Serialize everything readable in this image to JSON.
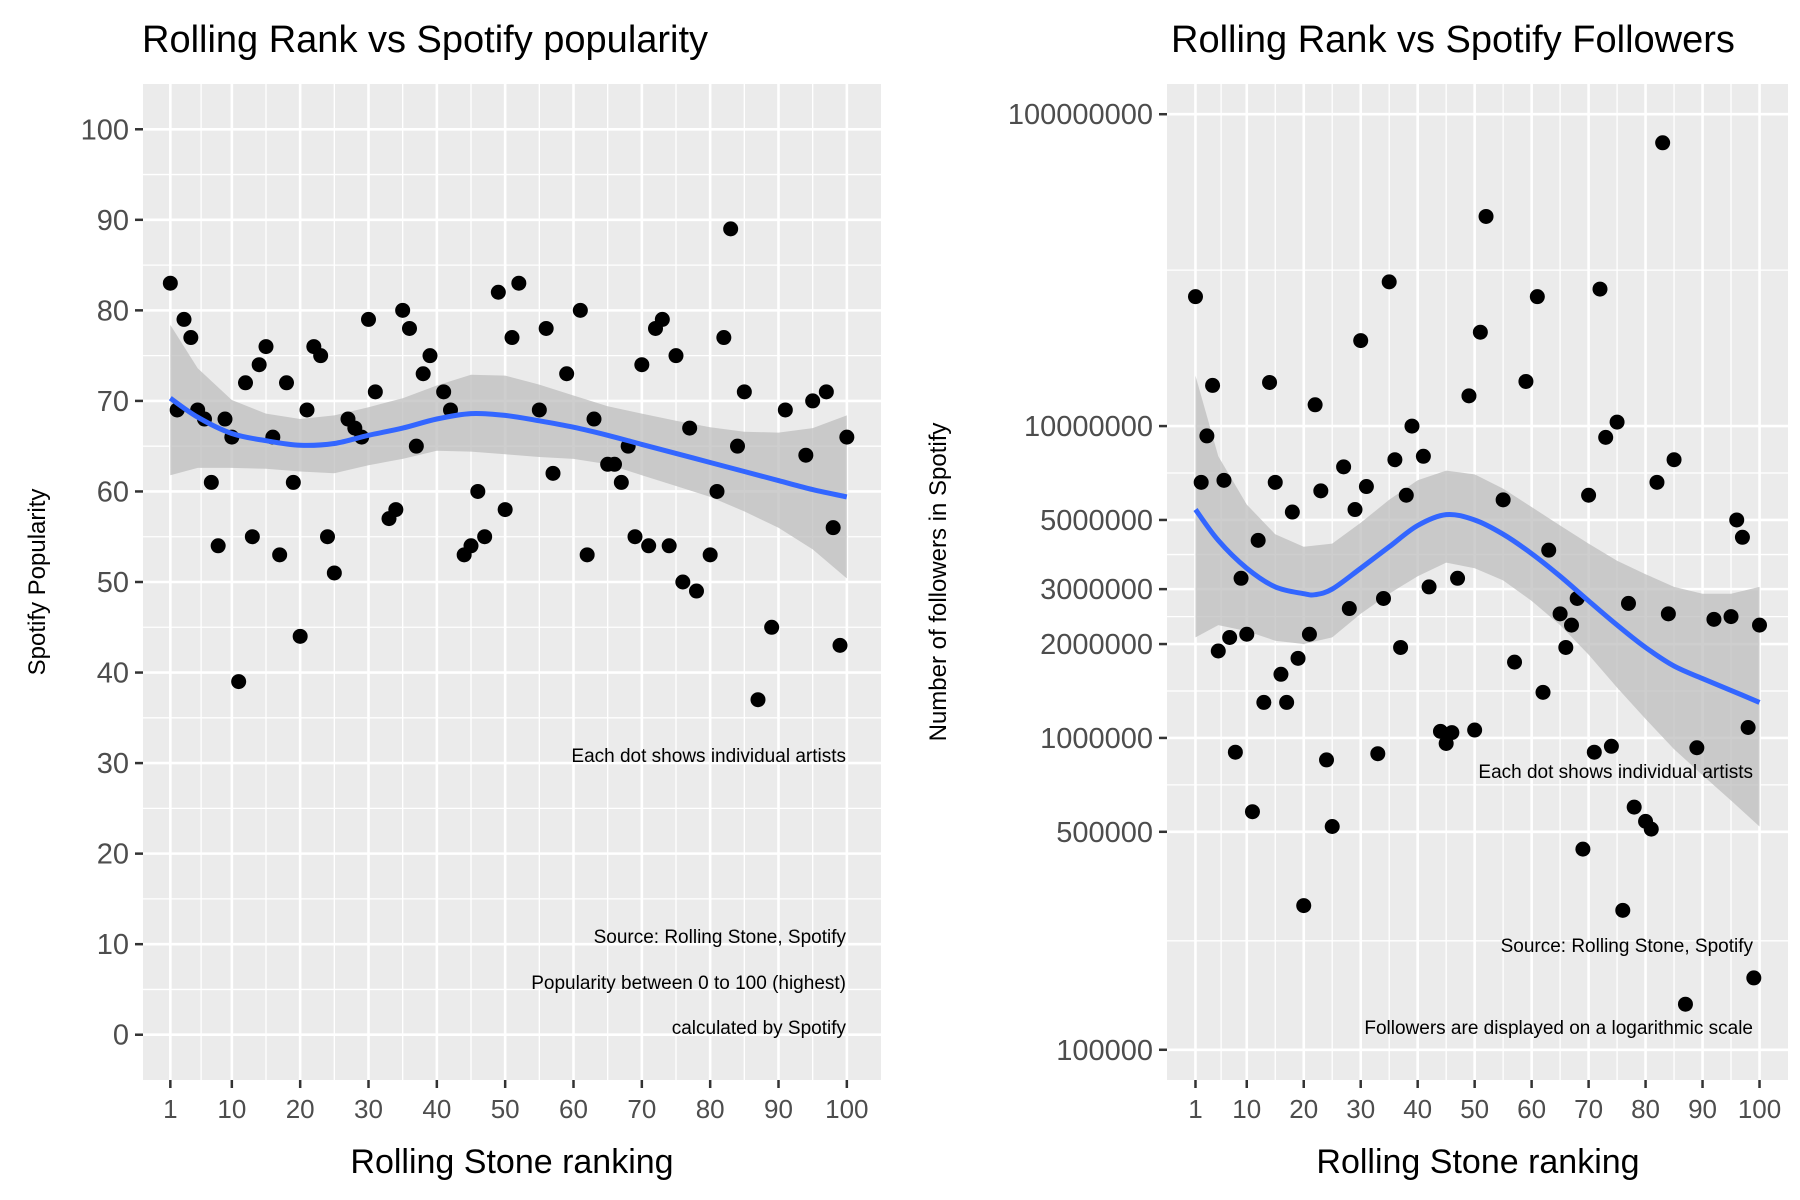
{
  "panels": {
    "left": {
      "title": "Rolling Rank vs Spotify popularity",
      "xlabel": "Rolling Stone ranking",
      "ylabel": "Spotify Popularity",
      "note": "Each dot shows individual artists",
      "source_lines": [
        "Source: Rolling Stone, Spotify",
        "Popularity between 0 to 100 (highest)",
        "calculated by Spotify"
      ]
    },
    "right": {
      "title": "Rolling Rank vs Spotify Followers",
      "xlabel": "Rolling Stone ranking",
      "ylabel": "Number of followers in Spotify",
      "note": "Each dot shows individual artists",
      "source_lines": [
        "Source: Rolling Stone, Spotify",
        "Followers are displayed on a logarithmic scale"
      ]
    }
  },
  "colors": {
    "panel_bg": "#ebebeb",
    "grid": "#ffffff",
    "point": "#000000",
    "smooth_line": "#3366ff",
    "confidence_band": "#bdbdbd",
    "axis_text": "#4d4d4d"
  },
  "chart_data": [
    {
      "type": "scatter",
      "title": "Rolling Rank vs Spotify popularity",
      "xlabel": "Rolling Stone ranking",
      "ylabel": "Spotify Popularity",
      "x_ticks": [
        1,
        10,
        20,
        30,
        40,
        50,
        60,
        70,
        80,
        90,
        100
      ],
      "y_ticks": [
        0,
        10,
        20,
        30,
        40,
        50,
        60,
        70,
        80,
        90,
        100
      ],
      "xlim": [
        -3,
        105
      ],
      "ylim": [
        -5,
        105
      ],
      "grid": true,
      "points": [
        [
          1,
          83
        ],
        [
          2,
          69
        ],
        [
          3,
          79
        ],
        [
          4,
          77
        ],
        [
          5,
          69
        ],
        [
          6,
          68
        ],
        [
          7,
          61
        ],
        [
          8,
          54
        ],
        [
          9,
          68
        ],
        [
          10,
          66
        ],
        [
          11,
          39
        ],
        [
          12,
          72
        ],
        [
          13,
          55
        ],
        [
          14,
          74
        ],
        [
          15,
          76
        ],
        [
          16,
          66
        ],
        [
          17,
          53
        ],
        [
          18,
          72
        ],
        [
          19,
          61
        ],
        [
          20,
          44
        ],
        [
          21,
          69
        ],
        [
          22,
          76
        ],
        [
          23,
          75
        ],
        [
          24,
          55
        ],
        [
          25,
          51
        ],
        [
          27,
          68
        ],
        [
          28,
          67
        ],
        [
          29,
          66
        ],
        [
          30,
          79
        ],
        [
          31,
          71
        ],
        [
          33,
          57
        ],
        [
          34,
          58
        ],
        [
          35,
          80
        ],
        [
          36,
          78
        ],
        [
          37,
          65
        ],
        [
          38,
          73
        ],
        [
          39,
          75
        ],
        [
          41,
          71
        ],
        [
          42,
          69
        ],
        [
          44,
          53
        ],
        [
          45,
          54
        ],
        [
          46,
          60
        ],
        [
          47,
          55
        ],
        [
          49,
          82
        ],
        [
          50,
          58
        ],
        [
          51,
          77
        ],
        [
          52,
          83
        ],
        [
          55,
          69
        ],
        [
          56,
          78
        ],
        [
          57,
          62
        ],
        [
          59,
          73
        ],
        [
          61,
          80
        ],
        [
          62,
          53
        ],
        [
          63,
          68
        ],
        [
          65,
          63
        ],
        [
          66,
          63
        ],
        [
          67,
          61
        ],
        [
          68,
          65
        ],
        [
          69,
          55
        ],
        [
          70,
          74
        ],
        [
          71,
          54
        ],
        [
          72,
          78
        ],
        [
          73,
          79
        ],
        [
          74,
          54
        ],
        [
          75,
          75
        ],
        [
          76,
          50
        ],
        [
          77,
          67
        ],
        [
          78,
          49
        ],
        [
          80,
          53
        ],
        [
          81,
          60
        ],
        [
          82,
          77
        ],
        [
          83,
          89
        ],
        [
          84,
          65
        ],
        [
          85,
          71
        ],
        [
          87,
          37
        ],
        [
          89,
          45
        ],
        [
          91,
          69
        ],
        [
          94,
          64
        ],
        [
          95,
          70
        ],
        [
          97,
          71
        ],
        [
          98,
          56
        ],
        [
          99,
          43
        ],
        [
          100,
          66
        ]
      ],
      "smooth": [
        [
          1,
          70.3
        ],
        [
          5,
          68.2
        ],
        [
          10,
          66.4
        ],
        [
          15,
          65.6
        ],
        [
          20,
          65.1
        ],
        [
          25,
          65.3
        ],
        [
          30,
          66.2
        ],
        [
          35,
          67.0
        ],
        [
          40,
          68.0
        ],
        [
          45,
          68.6
        ],
        [
          50,
          68.4
        ],
        [
          55,
          67.8
        ],
        [
          60,
          67.1
        ],
        [
          65,
          66.2
        ],
        [
          70,
          65.2
        ],
        [
          75,
          64.2
        ],
        [
          80,
          63.2
        ],
        [
          85,
          62.2
        ],
        [
          90,
          61.2
        ],
        [
          95,
          60.2
        ],
        [
          100,
          59.4
        ]
      ],
      "band_upper": [
        [
          1,
          78.4
        ],
        [
          5,
          73.6
        ],
        [
          10,
          70.1
        ],
        [
          15,
          68.6
        ],
        [
          20,
          68.0
        ],
        [
          25,
          68.4
        ],
        [
          30,
          69.3
        ],
        [
          35,
          70.3
        ],
        [
          40,
          71.7
        ],
        [
          45,
          72.9
        ],
        [
          50,
          72.8
        ],
        [
          55,
          71.8
        ],
        [
          60,
          70.6
        ],
        [
          65,
          69.4
        ],
        [
          70,
          68.6
        ],
        [
          75,
          67.8
        ],
        [
          80,
          67.1
        ],
        [
          85,
          66.6
        ],
        [
          90,
          66.5
        ],
        [
          95,
          67.0
        ],
        [
          100,
          68.4
        ]
      ],
      "band_lower": [
        [
          1,
          61.8
        ],
        [
          5,
          62.6
        ],
        [
          10,
          62.6
        ],
        [
          15,
          62.5
        ],
        [
          20,
          62.2
        ],
        [
          25,
          62.0
        ],
        [
          30,
          62.9
        ],
        [
          35,
          63.6
        ],
        [
          40,
          64.5
        ],
        [
          45,
          64.4
        ],
        [
          50,
          64.1
        ],
        [
          55,
          63.8
        ],
        [
          60,
          63.6
        ],
        [
          65,
          63.0
        ],
        [
          70,
          61.8
        ],
        [
          75,
          60.6
        ],
        [
          80,
          59.4
        ],
        [
          85,
          57.8
        ],
        [
          90,
          56.0
        ],
        [
          95,
          53.6
        ],
        [
          100,
          50.4
        ]
      ]
    },
    {
      "type": "scatter",
      "title": "Rolling Rank vs Spotify Followers",
      "xlabel": "Rolling Stone ranking",
      "ylabel": "Number of followers in Spotify",
      "y_scale": "log",
      "x_ticks": [
        1,
        10,
        20,
        30,
        40,
        50,
        60,
        70,
        80,
        90,
        100
      ],
      "y_ticks": [
        100000,
        500000,
        1000000,
        2000000,
        3000000,
        5000000,
        10000000,
        100000000
      ],
      "y_tick_labels": [
        "100000",
        "500000",
        "1000000",
        "2000000",
        "3000000",
        "5000000",
        "10000000",
        "100000000"
      ],
      "xlim": [
        -4,
        105
      ],
      "ylim": [
        80000,
        125000000
      ],
      "grid": true,
      "points": [
        [
          1,
          26000000
        ],
        [
          2,
          6600000
        ],
        [
          3,
          9300000
        ],
        [
          4,
          13500000
        ],
        [
          5,
          1900000
        ],
        [
          6,
          6700000
        ],
        [
          7,
          2100000
        ],
        [
          8,
          900000
        ],
        [
          9,
          3250000
        ],
        [
          10,
          2150000
        ],
        [
          11,
          580000
        ],
        [
          12,
          4300000
        ],
        [
          13,
          1300000
        ],
        [
          14,
          13800000
        ],
        [
          15,
          6600000
        ],
        [
          16,
          1600000
        ],
        [
          17,
          1300000
        ],
        [
          18,
          5300000
        ],
        [
          19,
          1800000
        ],
        [
          20,
          290000
        ],
        [
          21,
          2150000
        ],
        [
          22,
          11700000
        ],
        [
          23,
          6200000
        ],
        [
          24,
          850000
        ],
        [
          25,
          520000
        ],
        [
          27,
          7400000
        ],
        [
          28,
          2600000
        ],
        [
          29,
          5400000
        ],
        [
          30,
          18800000
        ],
        [
          31,
          6400000
        ],
        [
          33,
          890000
        ],
        [
          34,
          2800000
        ],
        [
          35,
          29000000
        ],
        [
          36,
          7800000
        ],
        [
          37,
          1950000
        ],
        [
          38,
          6000000
        ],
        [
          39,
          10000000
        ],
        [
          41,
          8000000
        ],
        [
          42,
          3050000
        ],
        [
          44,
          1050000
        ],
        [
          45,
          960000
        ],
        [
          46,
          1040000
        ],
        [
          47,
          3250000
        ],
        [
          49,
          12500000
        ],
        [
          50,
          1060000
        ],
        [
          51,
          20000000
        ],
        [
          52,
          47000000
        ],
        [
          55,
          5800000
        ],
        [
          57,
          1750000
        ],
        [
          59,
          13900000
        ],
        [
          61,
          26000000
        ],
        [
          62,
          1400000
        ],
        [
          63,
          4000000
        ],
        [
          65,
          2500000
        ],
        [
          66,
          1950000
        ],
        [
          67,
          2300000
        ],
        [
          68,
          2800000
        ],
        [
          69,
          440000
        ],
        [
          70,
          6000000
        ],
        [
          71,
          900000
        ],
        [
          72,
          27500000
        ],
        [
          73,
          9200000
        ],
        [
          74,
          940000
        ],
        [
          75,
          10300000
        ],
        [
          76,
          280000
        ],
        [
          77,
          2700000
        ],
        [
          78,
          600000
        ],
        [
          80,
          540000
        ],
        [
          81,
          510000
        ],
        [
          82,
          6600000
        ],
        [
          83,
          81000000
        ],
        [
          84,
          2500000
        ],
        [
          85,
          7800000
        ],
        [
          87,
          140000
        ],
        [
          89,
          930000
        ],
        [
          92,
          2400000
        ],
        [
          95,
          2450000
        ],
        [
          96,
          5000000
        ],
        [
          97,
          4400000
        ],
        [
          98,
          1080000
        ],
        [
          99,
          170000
        ],
        [
          100,
          2300000
        ]
      ],
      "smooth": [
        [
          1,
          5400000
        ],
        [
          5,
          4300000
        ],
        [
          10,
          3500000
        ],
        [
          15,
          3050000
        ],
        [
          20,
          2900000
        ],
        [
          22,
          2880000
        ],
        [
          25,
          3000000
        ],
        [
          30,
          3500000
        ],
        [
          35,
          4100000
        ],
        [
          40,
          4800000
        ],
        [
          45,
          5200000
        ],
        [
          50,
          5000000
        ],
        [
          55,
          4500000
        ],
        [
          60,
          3900000
        ],
        [
          65,
          3300000
        ],
        [
          70,
          2750000
        ],
        [
          75,
          2300000
        ],
        [
          80,
          1950000
        ],
        [
          85,
          1700000
        ],
        [
          90,
          1550000
        ],
        [
          95,
          1420000
        ],
        [
          100,
          1300000
        ]
      ],
      "band_upper": [
        [
          1,
          14500000
        ],
        [
          5,
          8000000
        ],
        [
          10,
          5600000
        ],
        [
          15,
          4500000
        ],
        [
          20,
          4100000
        ],
        [
          25,
          4200000
        ],
        [
          30,
          4900000
        ],
        [
          35,
          5800000
        ],
        [
          40,
          6700000
        ],
        [
          45,
          7200000
        ],
        [
          50,
          7000000
        ],
        [
          55,
          6300000
        ],
        [
          60,
          5500000
        ],
        [
          65,
          4800000
        ],
        [
          70,
          4200000
        ],
        [
          75,
          3700000
        ],
        [
          80,
          3350000
        ],
        [
          85,
          3050000
        ],
        [
          90,
          2900000
        ],
        [
          95,
          2900000
        ],
        [
          100,
          3050000
        ]
      ],
      "band_lower": [
        [
          1,
          2100000
        ],
        [
          5,
          2300000
        ],
        [
          10,
          2200000
        ],
        [
          15,
          2050000
        ],
        [
          20,
          2000000
        ],
        [
          25,
          2100000
        ],
        [
          30,
          2500000
        ],
        [
          35,
          2900000
        ],
        [
          40,
          3300000
        ],
        [
          45,
          3650000
        ],
        [
          50,
          3500000
        ],
        [
          55,
          3200000
        ],
        [
          60,
          2750000
        ],
        [
          65,
          2300000
        ],
        [
          70,
          1850000
        ],
        [
          75,
          1450000
        ],
        [
          80,
          1150000
        ],
        [
          85,
          920000
        ],
        [
          90,
          760000
        ],
        [
          95,
          630000
        ],
        [
          100,
          520000
        ]
      ]
    }
  ]
}
